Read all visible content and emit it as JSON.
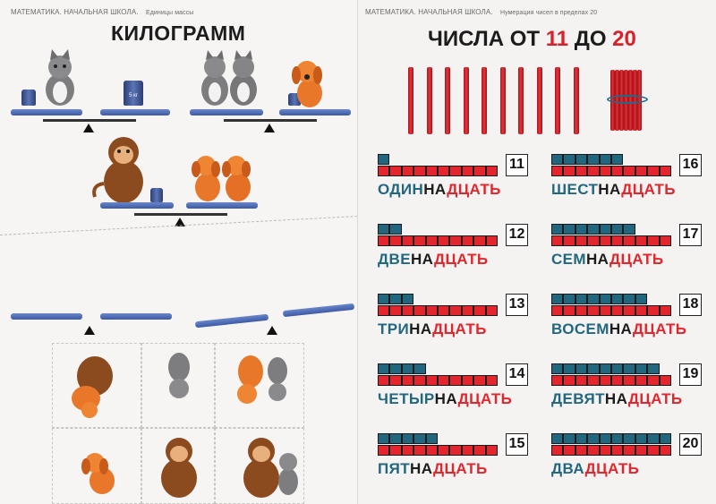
{
  "left_page": {
    "header": "МАТЕМАТИКА. НАЧАЛЬНАЯ ШКОЛА.",
    "header_sub": "Единицы массы",
    "title": "КИЛОГРАММ",
    "weights": [
      "1 кг",
      "5 кг",
      "1 кг",
      "1 кг"
    ]
  },
  "right_page": {
    "header": "МАТЕМАТИКА. НАЧАЛЬНАЯ ШКОЛА.",
    "header_sub": "Нумерация чисел в пределах 20",
    "title_prefix": "ЧИСЛА ОТ",
    "title_from": "11",
    "title_mid": "ДО",
    "title_to": "20",
    "numbers": [
      {
        "value": "11",
        "units": 1,
        "word1": "ОДИН",
        "word2": "НА",
        "word3": "ДЦАТЬ"
      },
      {
        "value": "12",
        "units": 2,
        "word1": "ДВЕ",
        "word2": "НА",
        "word3": "ДЦАТЬ"
      },
      {
        "value": "13",
        "units": 3,
        "word1": "ТРИ",
        "word2": "НА",
        "word3": "ДЦАТЬ"
      },
      {
        "value": "14",
        "units": 4,
        "word1": "ЧЕТЫР",
        "word2": "НА",
        "word3": "ДЦАТЬ"
      },
      {
        "value": "15",
        "units": 5,
        "word1": "ПЯТ",
        "word2": "НА",
        "word3": "ДЦАТЬ"
      },
      {
        "value": "16",
        "units": 6,
        "word1": "ШЕСТ",
        "word2": "НА",
        "word3": "ДЦАТЬ"
      },
      {
        "value": "17",
        "units": 7,
        "word1": "СЕМ",
        "word2": "НА",
        "word3": "ДЦАТЬ"
      },
      {
        "value": "18",
        "units": 8,
        "word1": "ВОСЕМ",
        "word2": "НА",
        "word3": "ДЦАТЬ"
      },
      {
        "value": "19",
        "units": 9,
        "word1": "ДЕВЯТ",
        "word2": "НА",
        "word3": "ДЦАТЬ"
      },
      {
        "value": "20",
        "units": 10,
        "word1": "ДВА",
        "word2": "",
        "word3": "ДЦАТЬ"
      }
    ]
  },
  "colors": {
    "red": "#e3262d",
    "teal": "#21677f",
    "plank_blue": "#3c5aa6"
  }
}
